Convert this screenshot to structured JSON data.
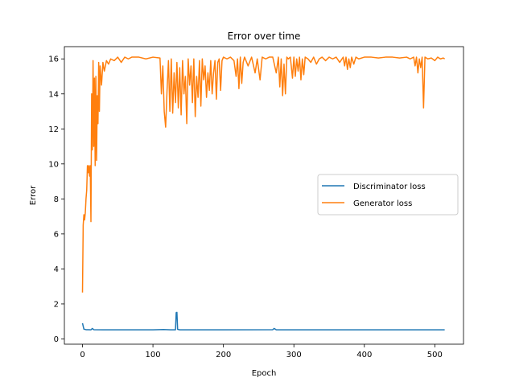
{
  "chart_data": {
    "type": "line",
    "title": "Error over time",
    "xlabel": "Epoch",
    "ylabel": "Error",
    "xlim": [
      -25.7,
      540.7
    ],
    "ylim": [
      -0.3,
      16.7
    ],
    "xticks": [
      0,
      100,
      200,
      300,
      400,
      500
    ],
    "yticks": [
      0,
      2,
      4,
      6,
      8,
      10,
      12,
      14,
      16
    ],
    "grid": false,
    "legend_position": "center-right",
    "series": [
      {
        "name": "Discriminator loss",
        "color": "#1f77b4",
        "points": [
          [
            0,
            0.9
          ],
          [
            2,
            0.56
          ],
          [
            5,
            0.53
          ],
          [
            8,
            0.53
          ],
          [
            12,
            0.52
          ],
          [
            14,
            0.6
          ],
          [
            16,
            0.53
          ],
          [
            30,
            0.52
          ],
          [
            60,
            0.52
          ],
          [
            100,
            0.52
          ],
          [
            115,
            0.54
          ],
          [
            125,
            0.52
          ],
          [
            132,
            0.52
          ],
          [
            133,
            1.5
          ],
          [
            134,
            1.52
          ],
          [
            135,
            0.55
          ],
          [
            138,
            0.52
          ],
          [
            200,
            0.52
          ],
          [
            270,
            0.53
          ],
          [
            272,
            0.6
          ],
          [
            275,
            0.52
          ],
          [
            350,
            0.52
          ],
          [
            420,
            0.52
          ],
          [
            480,
            0.52
          ],
          [
            514,
            0.52
          ]
        ]
      },
      {
        "name": "Generator loss",
        "color": "#ff7f0e",
        "points": [
          [
            0,
            2.65
          ],
          [
            1,
            6.5
          ],
          [
            2,
            7.1
          ],
          [
            3,
            6.8
          ],
          [
            4,
            7.2
          ],
          [
            5,
            8.0
          ],
          [
            6,
            8.5
          ],
          [
            7,
            9.9
          ],
          [
            8,
            9.5
          ],
          [
            9,
            9.9
          ],
          [
            10,
            9.3
          ],
          [
            11,
            9.9
          ],
          [
            12,
            6.7
          ],
          [
            13,
            14.0
          ],
          [
            14,
            10.8
          ],
          [
            15,
            15.9
          ],
          [
            16,
            11.0
          ],
          [
            17,
            14.9
          ],
          [
            18,
            9.9
          ],
          [
            19,
            15.0
          ],
          [
            20,
            10.2
          ],
          [
            21,
            13.9
          ],
          [
            22,
            12.3
          ],
          [
            23,
            15.8
          ],
          [
            24,
            13.0
          ],
          [
            25,
            15.6
          ],
          [
            27,
            14.5
          ],
          [
            29,
            15.8
          ],
          [
            31,
            15.3
          ],
          [
            34,
            15.9
          ],
          [
            37,
            15.7
          ],
          [
            40,
            16.0
          ],
          [
            45,
            15.9
          ],
          [
            50,
            16.1
          ],
          [
            55,
            15.8
          ],
          [
            60,
            16.1
          ],
          [
            65,
            16.0
          ],
          [
            70,
            16.1
          ],
          [
            80,
            16.1
          ],
          [
            90,
            16.0
          ],
          [
            100,
            16.1
          ],
          [
            110,
            16.05
          ],
          [
            112,
            14.0
          ],
          [
            114,
            15.6
          ],
          [
            116,
            13.0
          ],
          [
            118,
            12.1
          ],
          [
            120,
            14.2
          ],
          [
            122,
            15.9
          ],
          [
            124,
            13.0
          ],
          [
            126,
            16.0
          ],
          [
            128,
            12.9
          ],
          [
            130,
            15.2
          ],
          [
            132,
            13.5
          ],
          [
            134,
            15.8
          ],
          [
            136,
            13.2
          ],
          [
            138,
            15.5
          ],
          [
            140,
            12.8
          ],
          [
            142,
            15.9
          ],
          [
            144,
            14.0
          ],
          [
            146,
            15.0
          ],
          [
            148,
            12.3
          ],
          [
            150,
            16.0
          ],
          [
            152,
            14.5
          ],
          [
            154,
            15.6
          ],
          [
            156,
            13.5
          ],
          [
            158,
            16.0
          ],
          [
            160,
            12.7
          ],
          [
            162,
            15.0
          ],
          [
            164,
            13.8
          ],
          [
            166,
            15.9
          ],
          [
            168,
            13.3
          ],
          [
            170,
            16.0
          ],
          [
            172,
            14.8
          ],
          [
            174,
            15.6
          ],
          [
            176,
            13.8
          ],
          [
            178,
            15.2
          ],
          [
            180,
            14.2
          ],
          [
            182,
            15.9
          ],
          [
            184,
            14.0
          ],
          [
            186,
            15.2
          ],
          [
            188,
            15.9
          ],
          [
            190,
            13.7
          ],
          [
            192,
            15.8
          ],
          [
            194,
            16.0
          ],
          [
            196,
            14.2
          ],
          [
            198,
            15.9
          ],
          [
            200,
            16.1
          ],
          [
            205,
            16.0
          ],
          [
            210,
            16.1
          ],
          [
            215,
            15.9
          ],
          [
            218,
            15.0
          ],
          [
            220,
            16.0
          ],
          [
            222,
            14.3
          ],
          [
            224,
            16.1
          ],
          [
            226,
            14.6
          ],
          [
            228,
            15.8
          ],
          [
            230,
            16.1
          ],
          [
            235,
            15.6
          ],
          [
            240,
            16.1
          ],
          [
            245,
            15.2
          ],
          [
            248,
            16.0
          ],
          [
            252,
            14.8
          ],
          [
            255,
            16.1
          ],
          [
            260,
            16.0
          ],
          [
            265,
            16.1
          ],
          [
            270,
            16.1
          ],
          [
            275,
            15.2
          ],
          [
            278,
            16.1
          ],
          [
            280,
            14.4
          ],
          [
            282,
            16.0
          ],
          [
            284,
            13.9
          ],
          [
            286,
            15.7
          ],
          [
            288,
            14.0
          ],
          [
            290,
            16.1
          ],
          [
            292,
            16.0
          ],
          [
            295,
            16.1
          ],
          [
            298,
            14.9
          ],
          [
            300,
            16.1
          ],
          [
            302,
            15.0
          ],
          [
            304,
            16.0
          ],
          [
            306,
            15.3
          ],
          [
            308,
            16.1
          ],
          [
            310,
            14.8
          ],
          [
            312,
            16.0
          ],
          [
            314,
            15.1
          ],
          [
            316,
            16.1
          ],
          [
            320,
            16.0
          ],
          [
            324,
            15.8
          ],
          [
            328,
            16.1
          ],
          [
            332,
            15.7
          ],
          [
            336,
            16.0
          ],
          [
            340,
            16.1
          ],
          [
            345,
            15.9
          ],
          [
            350,
            16.1
          ],
          [
            355,
            16.0
          ],
          [
            360,
            16.1
          ],
          [
            365,
            15.8
          ],
          [
            370,
            16.1
          ],
          [
            372,
            15.6
          ],
          [
            374,
            16.1
          ],
          [
            376,
            15.4
          ],
          [
            378,
            16.0
          ],
          [
            380,
            15.5
          ],
          [
            382,
            16.1
          ],
          [
            385,
            15.7
          ],
          [
            388,
            16.1
          ],
          [
            392,
            16.0
          ],
          [
            400,
            16.1
          ],
          [
            410,
            16.1
          ],
          [
            420,
            16.05
          ],
          [
            430,
            16.1
          ],
          [
            440,
            16.1
          ],
          [
            450,
            16.05
          ],
          [
            460,
            16.1
          ],
          [
            465,
            16.0
          ],
          [
            470,
            16.1
          ],
          [
            472,
            15.6
          ],
          [
            474,
            16.1
          ],
          [
            476,
            15.2
          ],
          [
            478,
            16.0
          ],
          [
            480,
            15.5
          ],
          [
            482,
            16.1
          ],
          [
            484,
            13.2
          ],
          [
            486,
            16.1
          ],
          [
            490,
            16.0
          ],
          [
            495,
            16.05
          ],
          [
            500,
            15.9
          ],
          [
            504,
            16.1
          ],
          [
            508,
            16.0
          ],
          [
            512,
            16.05
          ],
          [
            514,
            16.0
          ]
        ]
      }
    ]
  }
}
